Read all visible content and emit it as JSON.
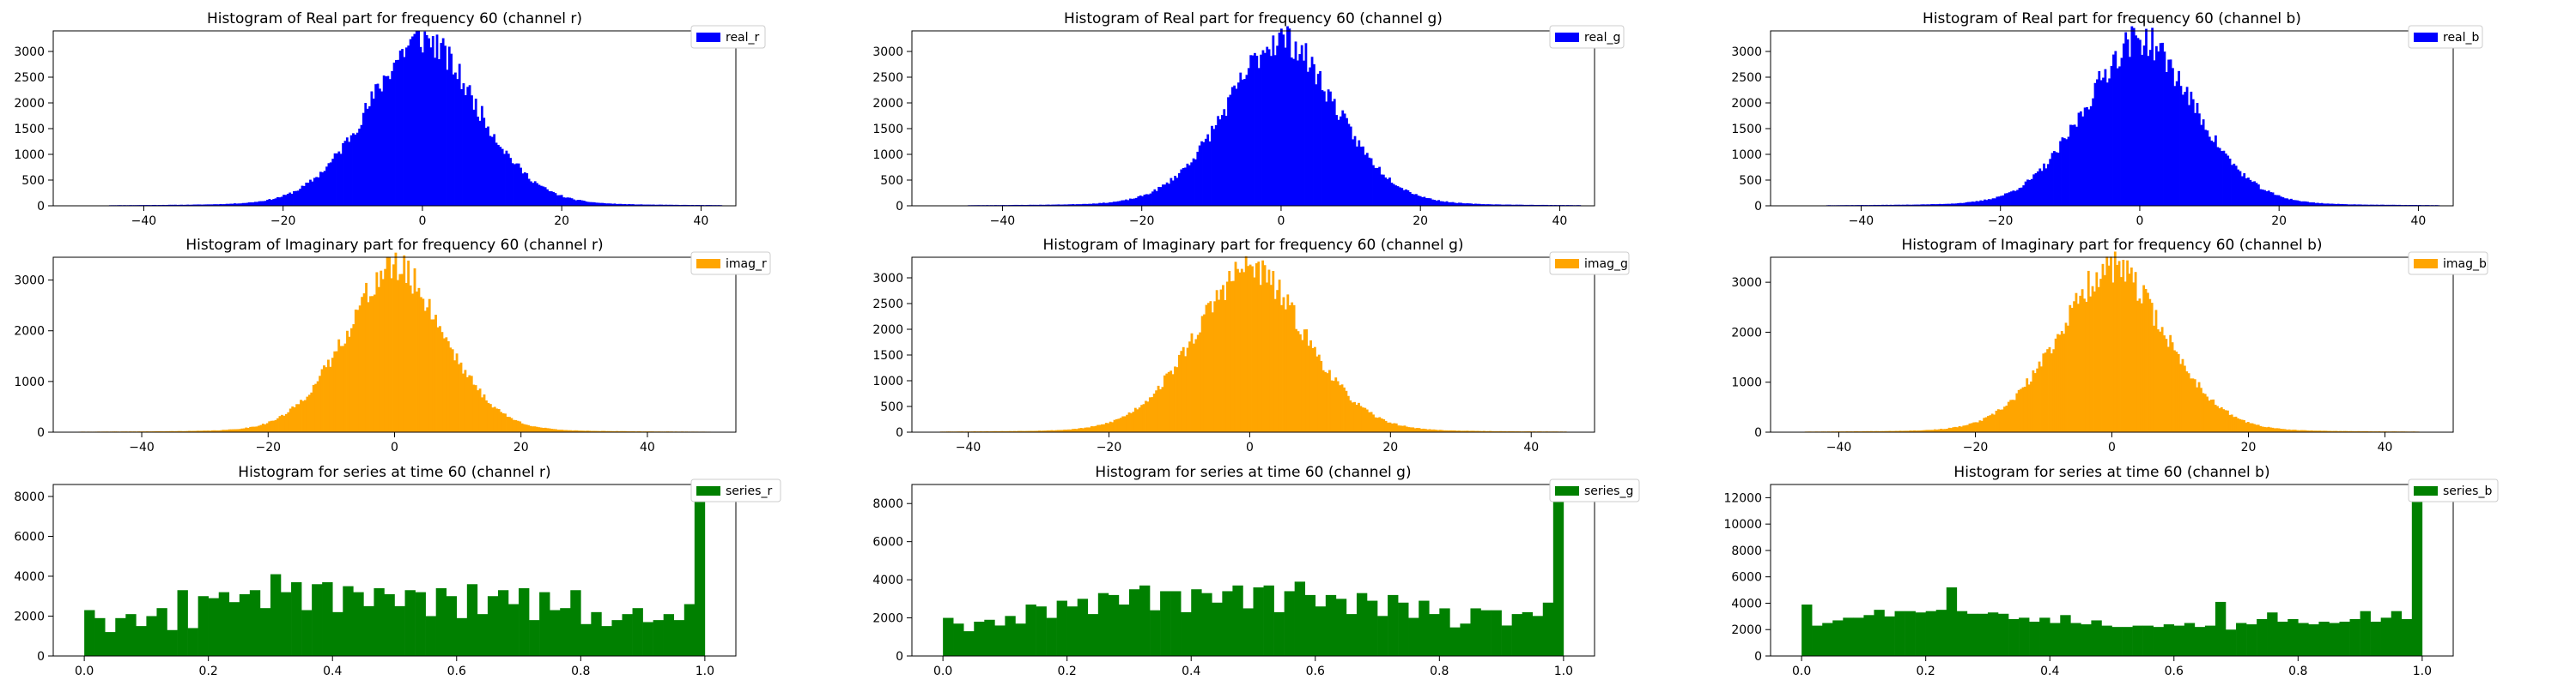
{
  "figure": {
    "background": "#ffffff"
  },
  "chart_data": [
    {
      "type": "bar",
      "kind": "histogram-curve",
      "title": "Histogram of Real part for frequency 60 (channel r)",
      "legend": "real_r",
      "color": "#0000ff",
      "xlim": [
        -53,
        45
      ],
      "ylim": [
        0,
        3400
      ],
      "xticks": [
        -40,
        -20,
        0,
        20,
        40
      ],
      "yticks": [
        0,
        500,
        1000,
        1500,
        2000,
        2500,
        3000
      ],
      "peak": 3250,
      "center": 0,
      "scale": 8.2,
      "range": [
        -45,
        43
      ],
      "bins": 300,
      "seed": 11
    },
    {
      "type": "bar",
      "kind": "histogram-curve",
      "title": "Histogram of Real part for frequency 60 (channel g)",
      "legend": "real_g",
      "color": "#0000ff",
      "xlim": [
        -53,
        45
      ],
      "ylim": [
        0,
        3400
      ],
      "xticks": [
        -40,
        -20,
        0,
        20,
        40
      ],
      "yticks": [
        0,
        500,
        1000,
        1500,
        2000,
        2500,
        3000
      ],
      "peak": 3250,
      "center": 0,
      "scale": 8.2,
      "range": [
        -45,
        43
      ],
      "bins": 300,
      "seed": 23
    },
    {
      "type": "bar",
      "kind": "histogram-curve",
      "title": "Histogram of Real part for frequency 60 (channel b)",
      "legend": "real_b",
      "color": "#0000ff",
      "xlim": [
        -53,
        45
      ],
      "ylim": [
        0,
        3400
      ],
      "xticks": [
        -40,
        -20,
        0,
        20,
        40
      ],
      "yticks": [
        0,
        500,
        1000,
        1500,
        2000,
        2500,
        3000
      ],
      "peak": 3250,
      "center": 0,
      "scale": 8.2,
      "range": [
        -45,
        43
      ],
      "bins": 300,
      "seed": 37
    },
    {
      "type": "bar",
      "kind": "histogram-curve",
      "title": "Histogram of Imaginary part for frequency 60 (channel r)",
      "legend": "imag_r",
      "color": "#ffa500",
      "xlim": [
        -54,
        54
      ],
      "ylim": [
        0,
        3450
      ],
      "xticks": [
        -40,
        -20,
        0,
        20,
        40
      ],
      "yticks": [
        0,
        1000,
        2000,
        3000
      ],
      "peak": 3250,
      "center": 0,
      "scale": 8.2,
      "range": [
        -50,
        50
      ],
      "bins": 300,
      "seed": 41
    },
    {
      "type": "bar",
      "kind": "histogram-curve",
      "title": "Histogram of Imaginary part for frequency 60 (channel g)",
      "legend": "imag_g",
      "color": "#ffa500",
      "xlim": [
        -48,
        49
      ],
      "ylim": [
        0,
        3400
      ],
      "xticks": [
        -40,
        -20,
        0,
        20,
        40
      ],
      "yticks": [
        0,
        500,
        1000,
        1500,
        2000,
        2500,
        3000
      ],
      "peak": 3200,
      "center": 0,
      "scale": 8.2,
      "range": [
        -44,
        45
      ],
      "bins": 300,
      "seed": 53
    },
    {
      "type": "bar",
      "kind": "histogram-curve",
      "title": "Histogram of Imaginary part for frequency 60 (channel b)",
      "legend": "imag_b",
      "color": "#ffa500",
      "xlim": [
        -50,
        50
      ],
      "ylim": [
        0,
        3500
      ],
      "xticks": [
        -40,
        -20,
        0,
        20,
        40
      ],
      "yticks": [
        0,
        1000,
        2000,
        3000
      ],
      "peak": 3300,
      "center": 0,
      "scale": 8.2,
      "range": [
        -45,
        45
      ],
      "bins": 300,
      "seed": 67
    },
    {
      "type": "bar",
      "kind": "histogram",
      "title": "Histogram for series at time 60 (channel r)",
      "legend": "series_r",
      "color": "#008000",
      "xlim": [
        -0.05,
        1.05
      ],
      "ylim": [
        0,
        8600
      ],
      "xticks": [
        0.0,
        0.2,
        0.4,
        0.6,
        0.8,
        1.0
      ],
      "xtick_labels": [
        "0.0",
        "0.2",
        "0.4",
        "0.6",
        "0.8",
        "1.0"
      ],
      "yticks": [
        0,
        2000,
        4000,
        6000,
        8000
      ],
      "values": [
        2300,
        1900,
        1200,
        1900,
        2100,
        1500,
        2000,
        2400,
        1300,
        3300,
        1400,
        3000,
        2900,
        3200,
        2700,
        3100,
        3300,
        2400,
        4100,
        3200,
        3700,
        2300,
        3600,
        3700,
        2200,
        3500,
        3200,
        2500,
        3400,
        3100,
        2500,
        3300,
        3200,
        2000,
        3400,
        3000,
        1900,
        3600,
        2100,
        3000,
        3300,
        2600,
        3400,
        1800,
        3200,
        2300,
        2400,
        3300,
        1600,
        2200,
        1500,
        1800,
        2100,
        2400,
        1700,
        1800,
        2100,
        1800,
        2600,
        8200
      ]
    },
    {
      "type": "bar",
      "kind": "histogram",
      "title": "Histogram for series at time 60 (channel g)",
      "legend": "series_g",
      "color": "#008000",
      "xlim": [
        -0.05,
        1.05
      ],
      "ylim": [
        0,
        9000
      ],
      "xticks": [
        0.0,
        0.2,
        0.4,
        0.6,
        0.8,
        1.0
      ],
      "xtick_labels": [
        "0.0",
        "0.2",
        "0.4",
        "0.6",
        "0.8",
        "1.0"
      ],
      "yticks": [
        0,
        2000,
        4000,
        6000,
        8000
      ],
      "values": [
        2000,
        1700,
        1300,
        1800,
        1900,
        1600,
        2100,
        1700,
        2700,
        2600,
        2000,
        2900,
        2600,
        3000,
        2200,
        3300,
        3200,
        2700,
        3500,
        3700,
        2400,
        3400,
        3400,
        2300,
        3500,
        3300,
        2800,
        3400,
        3700,
        2500,
        3600,
        3700,
        2300,
        3400,
        3900,
        3200,
        2600,
        3200,
        3000,
        2200,
        3300,
        2900,
        2100,
        3200,
        2800,
        2000,
        2900,
        2200,
        2500,
        1500,
        1700,
        2500,
        2400,
        2400,
        1600,
        2200,
        2300,
        2100,
        2800,
        8600
      ]
    },
    {
      "type": "bar",
      "kind": "histogram",
      "title": "Histogram for series at time 60 (channel b)",
      "legend": "series_b",
      "color": "#008000",
      "xlim": [
        -0.05,
        1.05
      ],
      "ylim": [
        0,
        13000
      ],
      "xticks": [
        0.0,
        0.2,
        0.4,
        0.6,
        0.8,
        1.0
      ],
      "xtick_labels": [
        "0.0",
        "0.2",
        "0.4",
        "0.6",
        "0.8",
        "1.0"
      ],
      "yticks": [
        0,
        2000,
        4000,
        6000,
        8000,
        10000,
        12000
      ],
      "values": [
        3900,
        2300,
        2500,
        2700,
        2900,
        2900,
        3100,
        3500,
        3000,
        3400,
        3400,
        3300,
        3400,
        3500,
        5200,
        3400,
        3200,
        3200,
        3300,
        3200,
        2800,
        2900,
        2600,
        2900,
        2500,
        3100,
        2500,
        2400,
        2700,
        2300,
        2200,
        2200,
        2300,
        2300,
        2200,
        2400,
        2300,
        2500,
        2200,
        2300,
        4100,
        2000,
        2500,
        2400,
        2800,
        3300,
        2600,
        2800,
        2500,
        2400,
        2600,
        2500,
        2600,
        2800,
        3400,
        2600,
        2900,
        3400,
        2800,
        12600
      ]
    }
  ]
}
